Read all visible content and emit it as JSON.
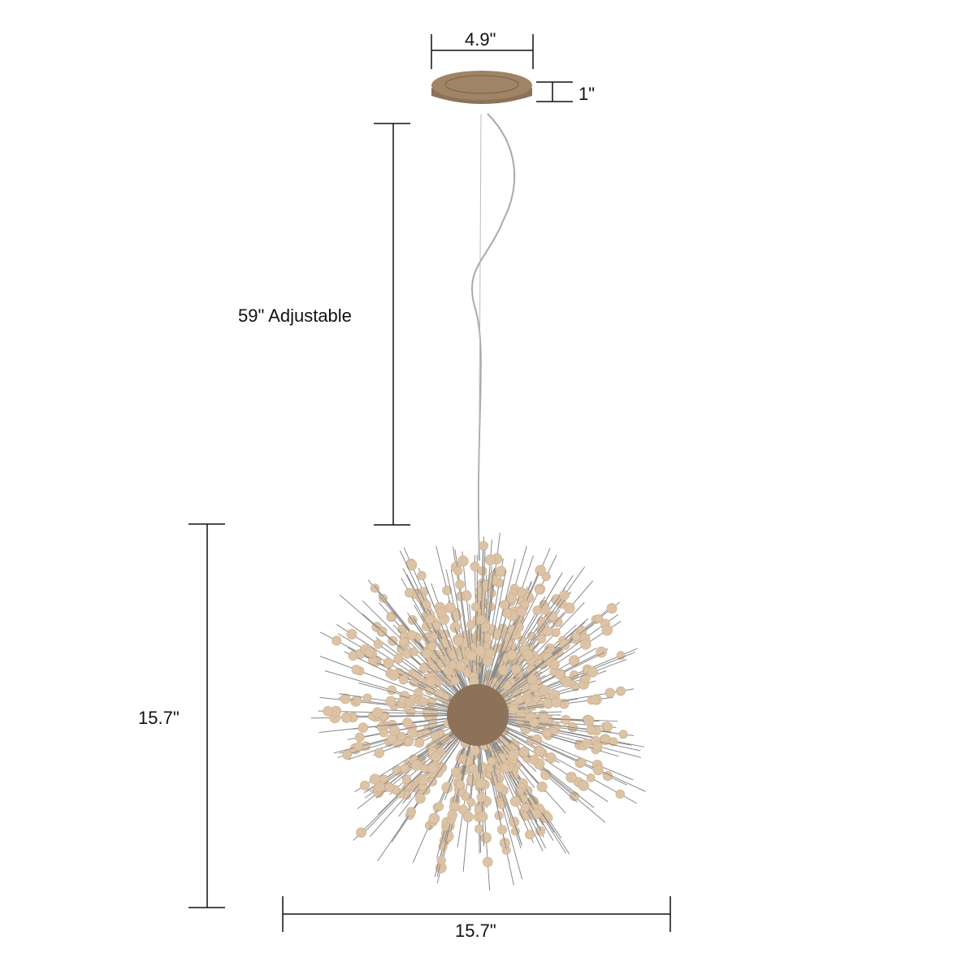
{
  "dimensions": {
    "canopy_width": "4.9\"",
    "canopy_height": "1\"",
    "cord_length": "59\" Adjustable",
    "fixture_height": "15.7\"",
    "fixture_width": "15.7\""
  },
  "colors": {
    "bead": "#dcc3a6",
    "canopy": "#a08466",
    "rod": "#8a8a8a",
    "dimension_line": "#111111"
  }
}
